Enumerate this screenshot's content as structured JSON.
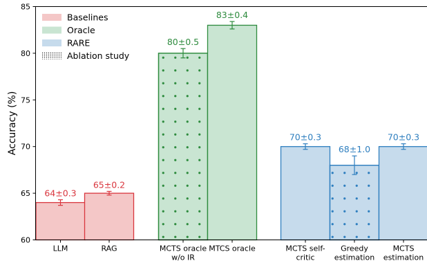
{
  "chart_data": {
    "type": "bar",
    "title": "",
    "xlabel": "",
    "ylabel": "Accuracy (%)",
    "ylim": [
      60,
      85
    ],
    "yticks": [
      "60",
      "65",
      "70",
      "75",
      "80",
      "85"
    ],
    "grid": false,
    "legend_position": "top-left",
    "colors": {
      "baselines_fill": "#f4c7c7",
      "baselines_edge": "#d9363e",
      "oracle_fill": "#c9e5d2",
      "oracle_edge": "#2e8b3e",
      "rare_fill": "#c6dbec",
      "rare_edge": "#2f7fbf"
    },
    "legend": [
      {
        "label": "Baselines",
        "group": "baselines"
      },
      {
        "label": "Oracle",
        "group": "oracle"
      },
      {
        "label": "RARE",
        "group": "rare"
      },
      {
        "label": "Ablation study",
        "group": "ablation"
      }
    ],
    "bars": [
      {
        "category": [
          "LLM"
        ],
        "value": 64,
        "error": 0.3,
        "label": "64±0.3",
        "group": "baselines",
        "ablation": false
      },
      {
        "category": [
          "RAG"
        ],
        "value": 65,
        "error": 0.2,
        "label": "65±0.2",
        "group": "baselines",
        "ablation": false
      },
      {
        "category": [
          "MCTS oracle",
          "w/o IR"
        ],
        "value": 80,
        "error": 0.5,
        "label": "80±0.5",
        "group": "oracle",
        "ablation": true
      },
      {
        "category": [
          "MTCS oracle"
        ],
        "value": 83,
        "error": 0.4,
        "label": "83±0.4",
        "group": "oracle",
        "ablation": false
      },
      {
        "category": [
          "MCTS self-",
          "critic"
        ],
        "value": 70,
        "error": 0.3,
        "label": "70±0.3",
        "group": "rare",
        "ablation": false
      },
      {
        "category": [
          "Greedy",
          "estimation"
        ],
        "value": 68,
        "error": 1.0,
        "label": "68±1.0",
        "group": "rare",
        "ablation": true
      },
      {
        "category": [
          "MCTS",
          "estimation"
        ],
        "value": 70,
        "error": 0.3,
        "label": "70±0.3",
        "group": "rare",
        "ablation": false
      }
    ]
  }
}
